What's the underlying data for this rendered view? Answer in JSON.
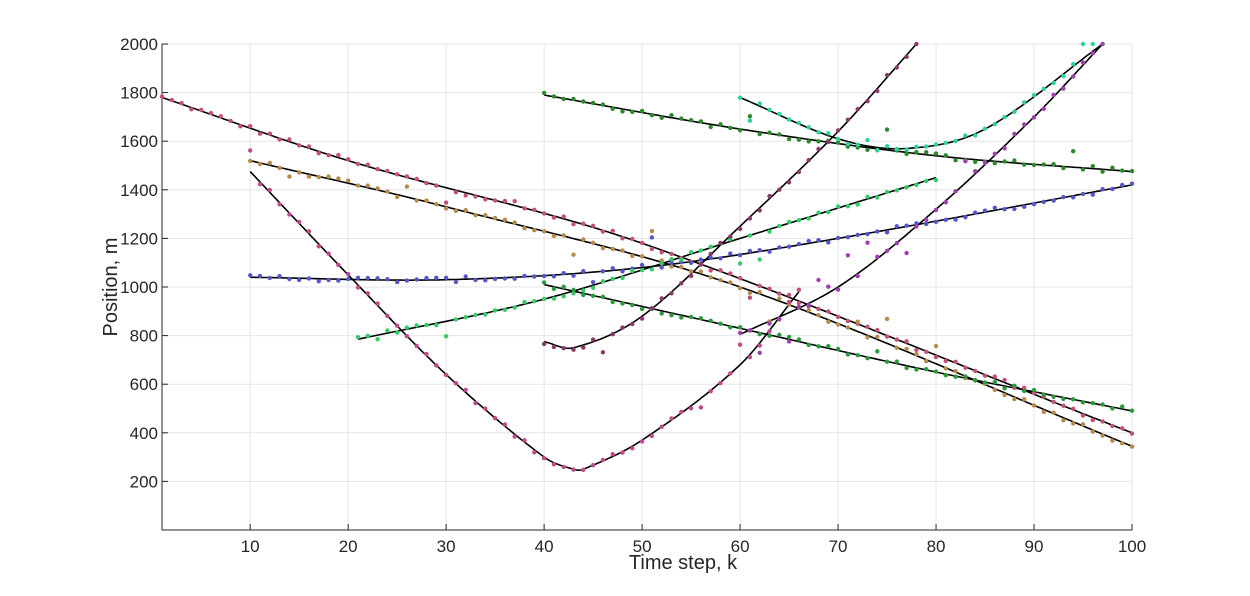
{
  "chart_data": {
    "type": "scatter",
    "title": "",
    "xlabel": "Time step, k",
    "ylabel": "Position, m",
    "xlim": [
      1,
      100
    ],
    "ylim": [
      0,
      2000
    ],
    "xticks": [
      10,
      20,
      30,
      40,
      50,
      60,
      70,
      80,
      90,
      100
    ],
    "yticks": [
      200,
      400,
      600,
      800,
      1000,
      1200,
      1400,
      1600,
      1800,
      2000
    ],
    "grid": true,
    "legend": "none",
    "fit_line_color": "#000000",
    "tracks": [
      {
        "color": "#c4507a",
        "k": [
          1,
          20,
          50,
          100
        ],
        "y": [
          1780,
          1520,
          1180,
          400
        ]
      },
      {
        "color": "#b58a4a",
        "k": [
          10,
          30,
          60,
          100
        ],
        "y": [
          1520,
          1330,
          1000,
          345
        ]
      },
      {
        "color": "#c04a8a",
        "k": [
          10,
          20,
          30,
          40,
          43,
          44,
          50,
          60,
          66
        ],
        "y": [
          1475,
          1050,
          640,
          300,
          250,
          250,
          370,
          680,
          980
        ]
      },
      {
        "color": "#5555cc",
        "k": [
          10,
          30,
          50,
          70,
          100
        ],
        "y": [
          1040,
          1030,
          1080,
          1200,
          1420
        ]
      },
      {
        "color": "#33cc66",
        "k": [
          21,
          40,
          60,
          80
        ],
        "y": [
          785,
          950,
          1200,
          1450
        ]
      },
      {
        "color": "#2a8a2a",
        "k": [
          40,
          60,
          80,
          100
        ],
        "y": [
          1790,
          1650,
          1540,
          1475
        ]
      },
      {
        "color": "#2ad39a",
        "k": [
          60,
          70,
          77,
          85,
          97
        ],
        "y": [
          1780,
          1610,
          1570,
          1650,
          2000
        ]
      },
      {
        "color": "#2a9a3a",
        "k": [
          40,
          60,
          80,
          100
        ],
        "y": [
          1010,
          830,
          650,
          490
        ]
      },
      {
        "color": "#8a3a6a",
        "k": [
          40,
          43,
          50,
          60,
          70,
          78
        ],
        "y": [
          775,
          750,
          880,
          1250,
          1640,
          2000
        ]
      },
      {
        "color": "#a040b0",
        "k": [
          60,
          70,
          80,
          90,
          97
        ],
        "y": [
          805,
          1000,
          1320,
          1700,
          2000
        ]
      }
    ]
  }
}
